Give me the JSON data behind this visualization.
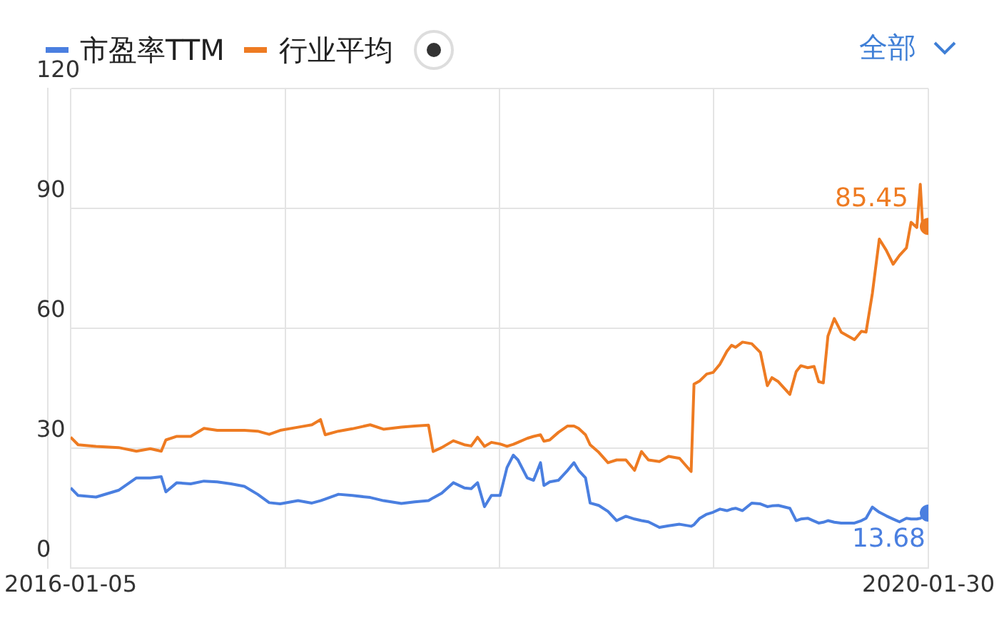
{
  "chart_data": {
    "type": "line",
    "x": [
      "2016-01-05",
      "2016-01-18",
      "2016-02-18",
      "2016-03-28",
      "2016-04-28",
      "2016-05-22",
      "2016-06-10",
      "2016-06-18",
      "2016-07-07",
      "2016-07-31",
      "2016-08-23",
      "2016-09-15",
      "2016-10-09",
      "2016-11-01",
      "2016-11-24",
      "2016-12-14",
      "2017-01-02",
      "2017-02-02",
      "2017-02-26",
      "2017-03-13",
      "2017-03-21",
      "2017-04-13",
      "2017-05-07",
      "2017-06-07",
      "2017-06-30",
      "2017-07-31",
      "2017-08-23",
      "2017-09-16",
      "2017-09-24",
      "2017-10-09",
      "2017-10-29",
      "2017-11-17",
      "2017-11-29",
      "2017-12-10",
      "2017-12-22",
      "2018-01-03",
      "2018-01-18",
      "2018-01-30",
      "2018-02-10",
      "2018-02-18",
      "2018-03-06",
      "2018-03-17",
      "2018-03-29",
      "2018-04-04",
      "2018-04-14",
      "2018-04-29",
      "2018-05-15",
      "2018-05-26",
      "2018-06-03",
      "2018-06-15",
      "2018-06-23",
      "2018-07-08",
      "2018-07-24",
      "2018-08-08",
      "2018-08-24",
      "2018-09-08",
      "2018-09-20",
      "2018-10-02",
      "2018-10-21",
      "2018-11-06",
      "2018-11-25",
      "2018-12-15",
      "2018-12-20",
      "2018-12-30",
      "2019-01-11",
      "2019-01-22",
      "2019-02-03",
      "2019-02-15",
      "2019-02-23",
      "2019-03-02",
      "2019-03-14",
      "2019-03-30",
      "2019-04-14",
      "2019-04-26",
      "2019-05-04",
      "2019-05-15",
      "2019-06-04",
      "2019-06-15",
      "2019-06-23",
      "2019-07-05",
      "2019-07-16",
      "2019-07-24",
      "2019-08-01",
      "2019-08-09",
      "2019-08-20",
      "2019-09-01",
      "2019-09-13",
      "2019-09-24",
      "2019-10-06",
      "2019-10-14",
      "2019-10-25",
      "2019-11-06",
      "2019-11-18",
      "2019-11-30",
      "2019-12-11",
      "2019-12-23",
      "2019-12-31",
      "2020-01-10",
      "2020-01-16",
      "2020-01-20",
      "2020-01-30"
    ],
    "series": [
      {
        "name": "市盈率TTM",
        "color": "#4a7fe0",
        "values": [
          20.0,
          18.1,
          17.7,
          19.4,
          22.5,
          22.5,
          22.8,
          19.0,
          21.3,
          21.0,
          21.7,
          21.5,
          21.0,
          20.4,
          18.4,
          16.3,
          16.0,
          16.8,
          16.2,
          16.8,
          17.2,
          18.4,
          18.1,
          17.6,
          16.8,
          16.1,
          16.5,
          16.8,
          17.5,
          18.7,
          21.3,
          20.0,
          19.8,
          21.3,
          15.3,
          18.1,
          18.1,
          25.1,
          28.2,
          27.0,
          22.5,
          21.9,
          26.3,
          20.6,
          21.5,
          21.9,
          24.4,
          26.3,
          24.4,
          22.5,
          16.2,
          15.6,
          14.1,
          11.8,
          12.9,
          12.2,
          11.8,
          11.5,
          10.1,
          10.5,
          10.9,
          10.4,
          10.8,
          12.4,
          13.4,
          13.9,
          14.7,
          14.3,
          14.7,
          14.9,
          14.3,
          16.2,
          16.0,
          15.3,
          15.5,
          15.6,
          14.9,
          11.8,
          12.2,
          12.4,
          11.7,
          11.2,
          11.4,
          11.8,
          11.4,
          11.2,
          11.2,
          11.2,
          11.8,
          12.4,
          15.2,
          13.9,
          13.0,
          12.2,
          11.5,
          12.4,
          12.2,
          12.2,
          12.4,
          12.7,
          13.68
        ]
      },
      {
        "name": "行业平均",
        "color": "#ee7b22",
        "values": [
          32.7,
          30.8,
          30.4,
          30.1,
          29.2,
          29.8,
          29.2,
          32.0,
          32.9,
          32.9,
          34.9,
          34.4,
          34.4,
          34.4,
          34.2,
          33.4,
          34.4,
          35.2,
          35.8,
          37.1,
          33.3,
          34.2,
          34.8,
          35.8,
          34.7,
          35.2,
          35.5,
          35.7,
          29.1,
          30.1,
          31.8,
          30.8,
          30.5,
          32.7,
          30.4,
          31.4,
          31.0,
          30.4,
          30.9,
          31.4,
          32.4,
          32.9,
          33.3,
          31.7,
          32.0,
          33.9,
          35.5,
          35.5,
          34.9,
          33.3,
          30.8,
          28.9,
          26.3,
          27.0,
          27.0,
          24.4,
          29.1,
          27.0,
          26.6,
          27.9,
          27.4,
          24.1,
          46.0,
          46.8,
          48.5,
          48.9,
          51.0,
          54.2,
          55.7,
          55.2,
          56.5,
          56.1,
          53.9,
          45.6,
          47.6,
          46.6,
          43.4,
          49.1,
          50.6,
          50.1,
          50.4,
          46.6,
          46.3,
          58.0,
          62.4,
          59.0,
          58.0,
          57.1,
          59.2,
          59.0,
          68.7,
          82.3,
          79.5,
          76.0,
          78.2,
          80.1,
          86.5,
          85.2,
          96.0,
          85.8,
          85.45
        ]
      }
    ],
    "xlim": [
      "2016-01-05",
      "2020-01-30"
    ],
    "xticks": [
      {
        "value": "2016-01-05",
        "label": "2016-01-05"
      },
      {
        "value": "2017-01-11",
        "label": null
      },
      {
        "value": "2018-01-17",
        "label": null
      },
      {
        "value": "2019-01-23",
        "label": null
      },
      {
        "value": "2020-01-30",
        "label": "2020-01-30"
      }
    ],
    "ylim": [
      0,
      120
    ],
    "yticks": [
      0,
      30,
      60,
      90,
      120
    ],
    "grid": true,
    "legend": "top left",
    "annotations": [
      {
        "text": "13.68",
        "x": "2020-01-30",
        "y": 13.68
      },
      {
        "text": "85.45",
        "x": "2020-01-30",
        "y": 85.45
      },
      "全部"
    ]
  }
}
